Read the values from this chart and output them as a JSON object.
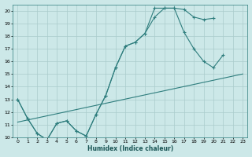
{
  "xlabel": "Humidex (Indice chaleur)",
  "background_color": "#cce8e8",
  "grid_color": "#aacccc",
  "line_color": "#2e7d7d",
  "xlim": [
    -0.5,
    23.5
  ],
  "ylim": [
    10,
    20.5
  ],
  "xticks": [
    0,
    1,
    2,
    3,
    4,
    5,
    6,
    7,
    8,
    9,
    10,
    11,
    12,
    13,
    14,
    15,
    16,
    17,
    18,
    19,
    20,
    21,
    22,
    23
  ],
  "yticks": [
    10,
    11,
    12,
    13,
    14,
    15,
    16,
    17,
    18,
    19,
    20
  ],
  "line1_x": [
    0,
    1,
    2,
    3,
    4,
    5,
    6,
    7,
    8,
    9,
    10,
    11,
    12,
    13,
    14,
    15,
    16,
    17,
    18,
    19,
    20
  ],
  "line1_y": [
    13.0,
    11.5,
    10.3,
    9.8,
    11.1,
    11.3,
    10.5,
    10.1,
    11.8,
    13.3,
    15.5,
    17.2,
    17.5,
    18.2,
    19.5,
    20.2,
    20.2,
    20.1,
    19.5,
    19.3,
    19.4
  ],
  "line2_x": [
    0,
    1,
    2,
    3,
    4,
    5,
    6,
    7,
    8,
    9,
    10,
    11,
    12,
    13,
    14,
    15,
    16,
    17,
    18,
    19,
    20,
    21,
    22,
    23
  ],
  "line2_y": [
    13.0,
    11.5,
    10.3,
    9.8,
    11.1,
    11.3,
    10.5,
    10.1,
    11.8,
    13.3,
    15.5,
    17.2,
    17.5,
    18.2,
    20.2,
    20.2,
    20.2,
    18.3,
    17.0,
    16.0,
    15.5,
    16.5,
    null,
    null
  ],
  "line3_x": [
    0,
    23
  ],
  "line3_y": [
    11.2,
    15.0
  ]
}
